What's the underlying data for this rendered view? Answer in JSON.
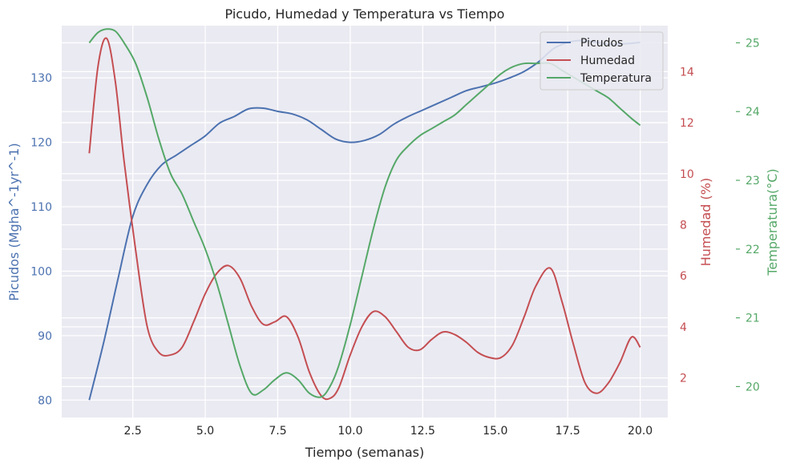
{
  "chart_data": {
    "type": "line",
    "title": "Picudo, Humedad y Temperatura vs Tiempo",
    "xlabel": "Tiempo (semanas)",
    "xlim": [
      0.05,
      20.95
    ],
    "x_ticks": [
      2.5,
      5.0,
      7.5,
      10.0,
      12.5,
      15.0,
      17.5,
      20.0
    ],
    "x_tick_labels": [
      "2.5",
      "5.0",
      "7.5",
      "10.0",
      "12.5",
      "15.0",
      "17.5",
      "20.0"
    ],
    "grid": true,
    "legend_position": "top-right",
    "axes": [
      {
        "id": "left",
        "label": "Picudos (Mgha^-1yr^-1)",
        "color": "#4c72b0",
        "ylim": [
          77.3,
          138.1
        ],
        "ticks": [
          80,
          90,
          100,
          110,
          120,
          130
        ],
        "tick_labels": [
          "80",
          "90",
          "100",
          "110",
          "120",
          "130"
        ]
      },
      {
        "id": "right1",
        "label": "Humedad (%)",
        "color": "#c44e52",
        "ylim": [
          0.45,
          15.8
        ],
        "ticks": [
          2,
          4,
          6,
          8,
          10,
          12,
          14
        ],
        "tick_labels": [
          "2",
          "4",
          "6",
          "8",
          "10",
          "12",
          "14"
        ]
      },
      {
        "id": "right2",
        "label": "Temperatura(°C)",
        "color": "#55a868",
        "ylim": [
          19.55,
          25.25
        ],
        "ticks": [
          20,
          21,
          22,
          23,
          24,
          25
        ],
        "tick_labels": [
          "20",
          "21",
          "22",
          "23",
          "24",
          "25"
        ]
      }
    ],
    "series": [
      {
        "name": "Picudos",
        "axis": "left",
        "color": "#4c72b0",
        "x": [
          1.0,
          1.5,
          2.0,
          2.5,
          3.0,
          3.5,
          4.0,
          4.5,
          5.0,
          5.5,
          6.0,
          6.5,
          7.0,
          7.5,
          8.0,
          8.5,
          9.0,
          9.5,
          10.0,
          10.5,
          11.0,
          11.5,
          12.0,
          12.5,
          13.0,
          13.5,
          14.0,
          14.5,
          15.0,
          15.5,
          16.0,
          16.5,
          17.0,
          17.5,
          18.0,
          18.5,
          19.0,
          19.5,
          20.0
        ],
        "y": [
          80,
          89,
          99,
          108.5,
          113.5,
          116.5,
          118,
          119.5,
          121,
          123,
          124,
          125.2,
          125.3,
          124.8,
          124.4,
          123.5,
          122,
          120.5,
          120.0,
          120.3,
          121.2,
          122.8,
          124,
          125,
          126,
          127,
          128,
          128.6,
          129.2,
          130,
          131,
          132.5,
          134.5,
          135.5,
          135.8,
          135.5,
          135.2,
          135.3,
          135.5
        ]
      },
      {
        "name": "Humedad",
        "axis": "right1",
        "color": "#c44e52",
        "x": [
          1.0,
          1.3,
          1.6,
          1.9,
          2.2,
          2.6,
          3.0,
          3.4,
          3.8,
          4.2,
          4.6,
          5.0,
          5.4,
          5.8,
          6.2,
          6.6,
          7.0,
          7.4,
          7.8,
          8.2,
          8.6,
          9.0,
          9.3,
          9.6,
          10.0,
          10.4,
          10.8,
          11.2,
          11.6,
          12.0,
          12.4,
          12.8,
          13.2,
          13.6,
          14.0,
          14.4,
          14.8,
          15.2,
          15.6,
          16.0,
          16.4,
          16.9,
          17.3,
          17.7,
          18.1,
          18.5,
          18.9,
          19.3,
          19.7,
          20.0
        ],
        "y": [
          10.8,
          14.2,
          15.3,
          13.6,
          10.5,
          7.0,
          4.0,
          3.0,
          2.9,
          3.2,
          4.2,
          5.3,
          6.1,
          6.4,
          5.9,
          4.8,
          4.1,
          4.2,
          4.4,
          3.6,
          2.2,
          1.3,
          1.2,
          1.6,
          2.9,
          4.0,
          4.6,
          4.4,
          3.8,
          3.2,
          3.1,
          3.5,
          3.8,
          3.7,
          3.4,
          3.0,
          2.8,
          2.8,
          3.3,
          4.4,
          5.6,
          6.3,
          5.0,
          3.3,
          1.8,
          1.4,
          1.8,
          2.6,
          3.6,
          3.2
        ]
      },
      {
        "name": "Temperatura",
        "axis": "right2",
        "color": "#55a868",
        "x": [
          1.0,
          1.3,
          1.6,
          1.9,
          2.2,
          2.6,
          3.0,
          3.4,
          3.8,
          4.2,
          4.6,
          5.0,
          5.4,
          5.8,
          6.2,
          6.6,
          7.0,
          7.4,
          7.8,
          8.2,
          8.6,
          9.0,
          9.3,
          9.6,
          10.0,
          10.4,
          10.8,
          11.2,
          11.6,
          12.0,
          12.4,
          12.8,
          13.2,
          13.6,
          14.0,
          14.4,
          14.8,
          15.2,
          15.6,
          16.0,
          16.4,
          16.9,
          17.3,
          17.7,
          18.1,
          18.5,
          18.9,
          19.3,
          19.7,
          20.0
        ],
        "y": [
          25.0,
          25.15,
          25.2,
          25.17,
          25.0,
          24.7,
          24.2,
          23.6,
          23.1,
          22.8,
          22.4,
          22.0,
          21.5,
          20.9,
          20.3,
          19.9,
          19.95,
          20.1,
          20.2,
          20.1,
          19.9,
          19.85,
          20.0,
          20.3,
          20.9,
          21.6,
          22.3,
          22.9,
          23.3,
          23.5,
          23.65,
          23.75,
          23.85,
          23.95,
          24.1,
          24.25,
          24.4,
          24.55,
          24.65,
          24.7,
          24.7,
          24.7,
          24.6,
          24.5,
          24.4,
          24.3,
          24.2,
          24.05,
          23.9,
          23.8
        ]
      }
    ]
  }
}
